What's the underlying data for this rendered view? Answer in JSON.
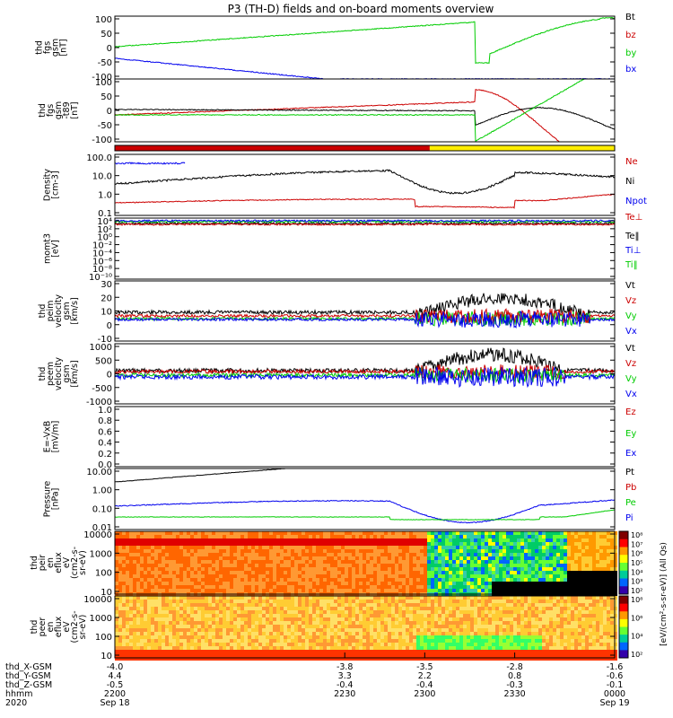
{
  "title": "P3 (TH-D) fields and on-board moments overview",
  "colors": {
    "black": "#000000",
    "red": "#cc0000",
    "green": "#00cc00",
    "blue": "#0000ee"
  },
  "chart_data": [
    {
      "type": "line",
      "ylabel": [
        "thd",
        "fgs",
        "gsm",
        "[nT]"
      ],
      "yticks": [
        "100",
        "50",
        "0",
        "-50",
        "-100"
      ],
      "series": [
        {
          "name": "Bt",
          "color": "black"
        },
        {
          "name": "bz",
          "color": "red"
        },
        {
          "name": "by",
          "color": "green"
        },
        {
          "name": "bx",
          "color": "blue"
        }
      ]
    },
    {
      "type": "line",
      "ylabel": [
        "thd",
        "fgs",
        "gsm",
        "-t89",
        "[nT]"
      ],
      "yticks": [
        "100",
        "50",
        "0",
        "-50",
        "-100"
      ],
      "series": []
    },
    {
      "type": "bar",
      "ylabel": [],
      "yticks": [],
      "series": [
        {
          "name": "",
          "color": "red"
        },
        {
          "name": "",
          "color": "yellow"
        }
      ]
    },
    {
      "type": "line",
      "ylabel": [
        "Density",
        "[cm-3]"
      ],
      "yticks": [
        "100.0",
        "10.0",
        "1.0",
        "0.1"
      ],
      "series": [
        {
          "name": "Ne",
          "color": "red"
        },
        {
          "name": "Ni",
          "color": "black"
        },
        {
          "name": "Npot",
          "color": "blue"
        }
      ]
    },
    {
      "type": "line",
      "ylabel": [
        "momt3",
        "[eV]"
      ],
      "yticks": [
        "10⁴",
        "10²",
        "10⁰",
        "10⁻²",
        "10⁻⁴",
        "10⁻⁶",
        "10⁻⁸",
        "10⁻¹⁰"
      ],
      "series": [
        {
          "name": "Te⊥",
          "color": "red"
        },
        {
          "name": "Te‖",
          "color": "black"
        },
        {
          "name": "Ti⊥",
          "color": "blue"
        },
        {
          "name": "Ti‖",
          "color": "green"
        }
      ]
    },
    {
      "type": "line",
      "ylabel": [
        "thd",
        "peim",
        "velocity",
        "gsm",
        "[km/s]"
      ],
      "yticks": [
        "30",
        "20",
        "10",
        "0",
        "-10"
      ],
      "series": [
        {
          "name": "Vt",
          "color": "black"
        },
        {
          "name": "Vz",
          "color": "red"
        },
        {
          "name": "Vy",
          "color": "green"
        },
        {
          "name": "Vx",
          "color": "blue"
        }
      ]
    },
    {
      "type": "line",
      "ylabel": [
        "thd",
        "peem",
        "velocity",
        "gsm",
        "[km/s]"
      ],
      "yticks": [
        "1000",
        "500",
        "0",
        "-500",
        "-1000"
      ],
      "series": [
        {
          "name": "Vt",
          "color": "black"
        },
        {
          "name": "Vz",
          "color": "red"
        },
        {
          "name": "Vy",
          "color": "green"
        },
        {
          "name": "Vx",
          "color": "blue"
        }
      ]
    },
    {
      "type": "line",
      "ylabel": [
        "E=-VxB",
        "[mV/m]"
      ],
      "yticks": [
        "1.0",
        "0.8",
        "0.6",
        "0.4",
        "0.2",
        "0.0"
      ],
      "series": [
        {
          "name": "Ez",
          "color": "red"
        },
        {
          "name": "Ey",
          "color": "green"
        },
        {
          "name": "Ex",
          "color": "blue"
        }
      ]
    },
    {
      "type": "line",
      "ylabel": [
        "Pressure",
        "[nPa]"
      ],
      "yticks": [
        "10.00",
        "1.00",
        "0.10",
        "0.01"
      ],
      "series": [
        {
          "name": "Pt",
          "color": "black"
        },
        {
          "name": "Pb",
          "color": "red"
        },
        {
          "name": "Pe",
          "color": "green"
        },
        {
          "name": "Pi",
          "color": "blue"
        }
      ]
    },
    {
      "type": "heatmap",
      "ylabel": [
        "thd",
        "peir",
        "en",
        "eflux",
        "eV",
        "(cm2-s-",
        "sr-eV)"
      ],
      "yticks": [
        "10000",
        "1000",
        "100",
        "10"
      ],
      "series": []
    },
    {
      "type": "heatmap",
      "ylabel": [
        "thd",
        "peer",
        "en",
        "eflux",
        "eV",
        "(cm2-s-",
        "sr-eV)"
      ],
      "yticks": [
        "10000",
        "1000",
        "100",
        "10"
      ],
      "series": []
    }
  ],
  "colorbars": [
    {
      "ticks": [
        "10⁸",
        "10⁷",
        "10⁶",
        "10⁵",
        "10⁴",
        "10³",
        "10²"
      ],
      "label": "[eV/(cm²-s-sr-eV)] (All Qs)"
    },
    {
      "ticks": [
        "10⁸",
        "10⁶",
        "10⁴",
        "10²"
      ],
      "label": ""
    }
  ],
  "xaxis": {
    "rows": [
      {
        "label": "thd_X-GSM",
        "values": [
          "-4.0",
          "-3.8",
          "-3.5",
          "-2.8",
          "-1.6"
        ]
      },
      {
        "label": "thd_Y-GSM",
        "values": [
          "4.4",
          "3.3",
          "2.2",
          "0.8",
          "-0.6"
        ]
      },
      {
        "label": "thd_Z-GSM",
        "values": [
          "-0.5",
          "-0.4",
          "-0.4",
          "-0.3",
          "-0.1"
        ]
      },
      {
        "label": "hhmm",
        "values": [
          "2200",
          "2230",
          "2300",
          "2330",
          "0000"
        ]
      },
      {
        "label": "2020",
        "values": [
          "Sep 18",
          "",
          "",
          "",
          "Sep 19"
        ]
      }
    ]
  }
}
